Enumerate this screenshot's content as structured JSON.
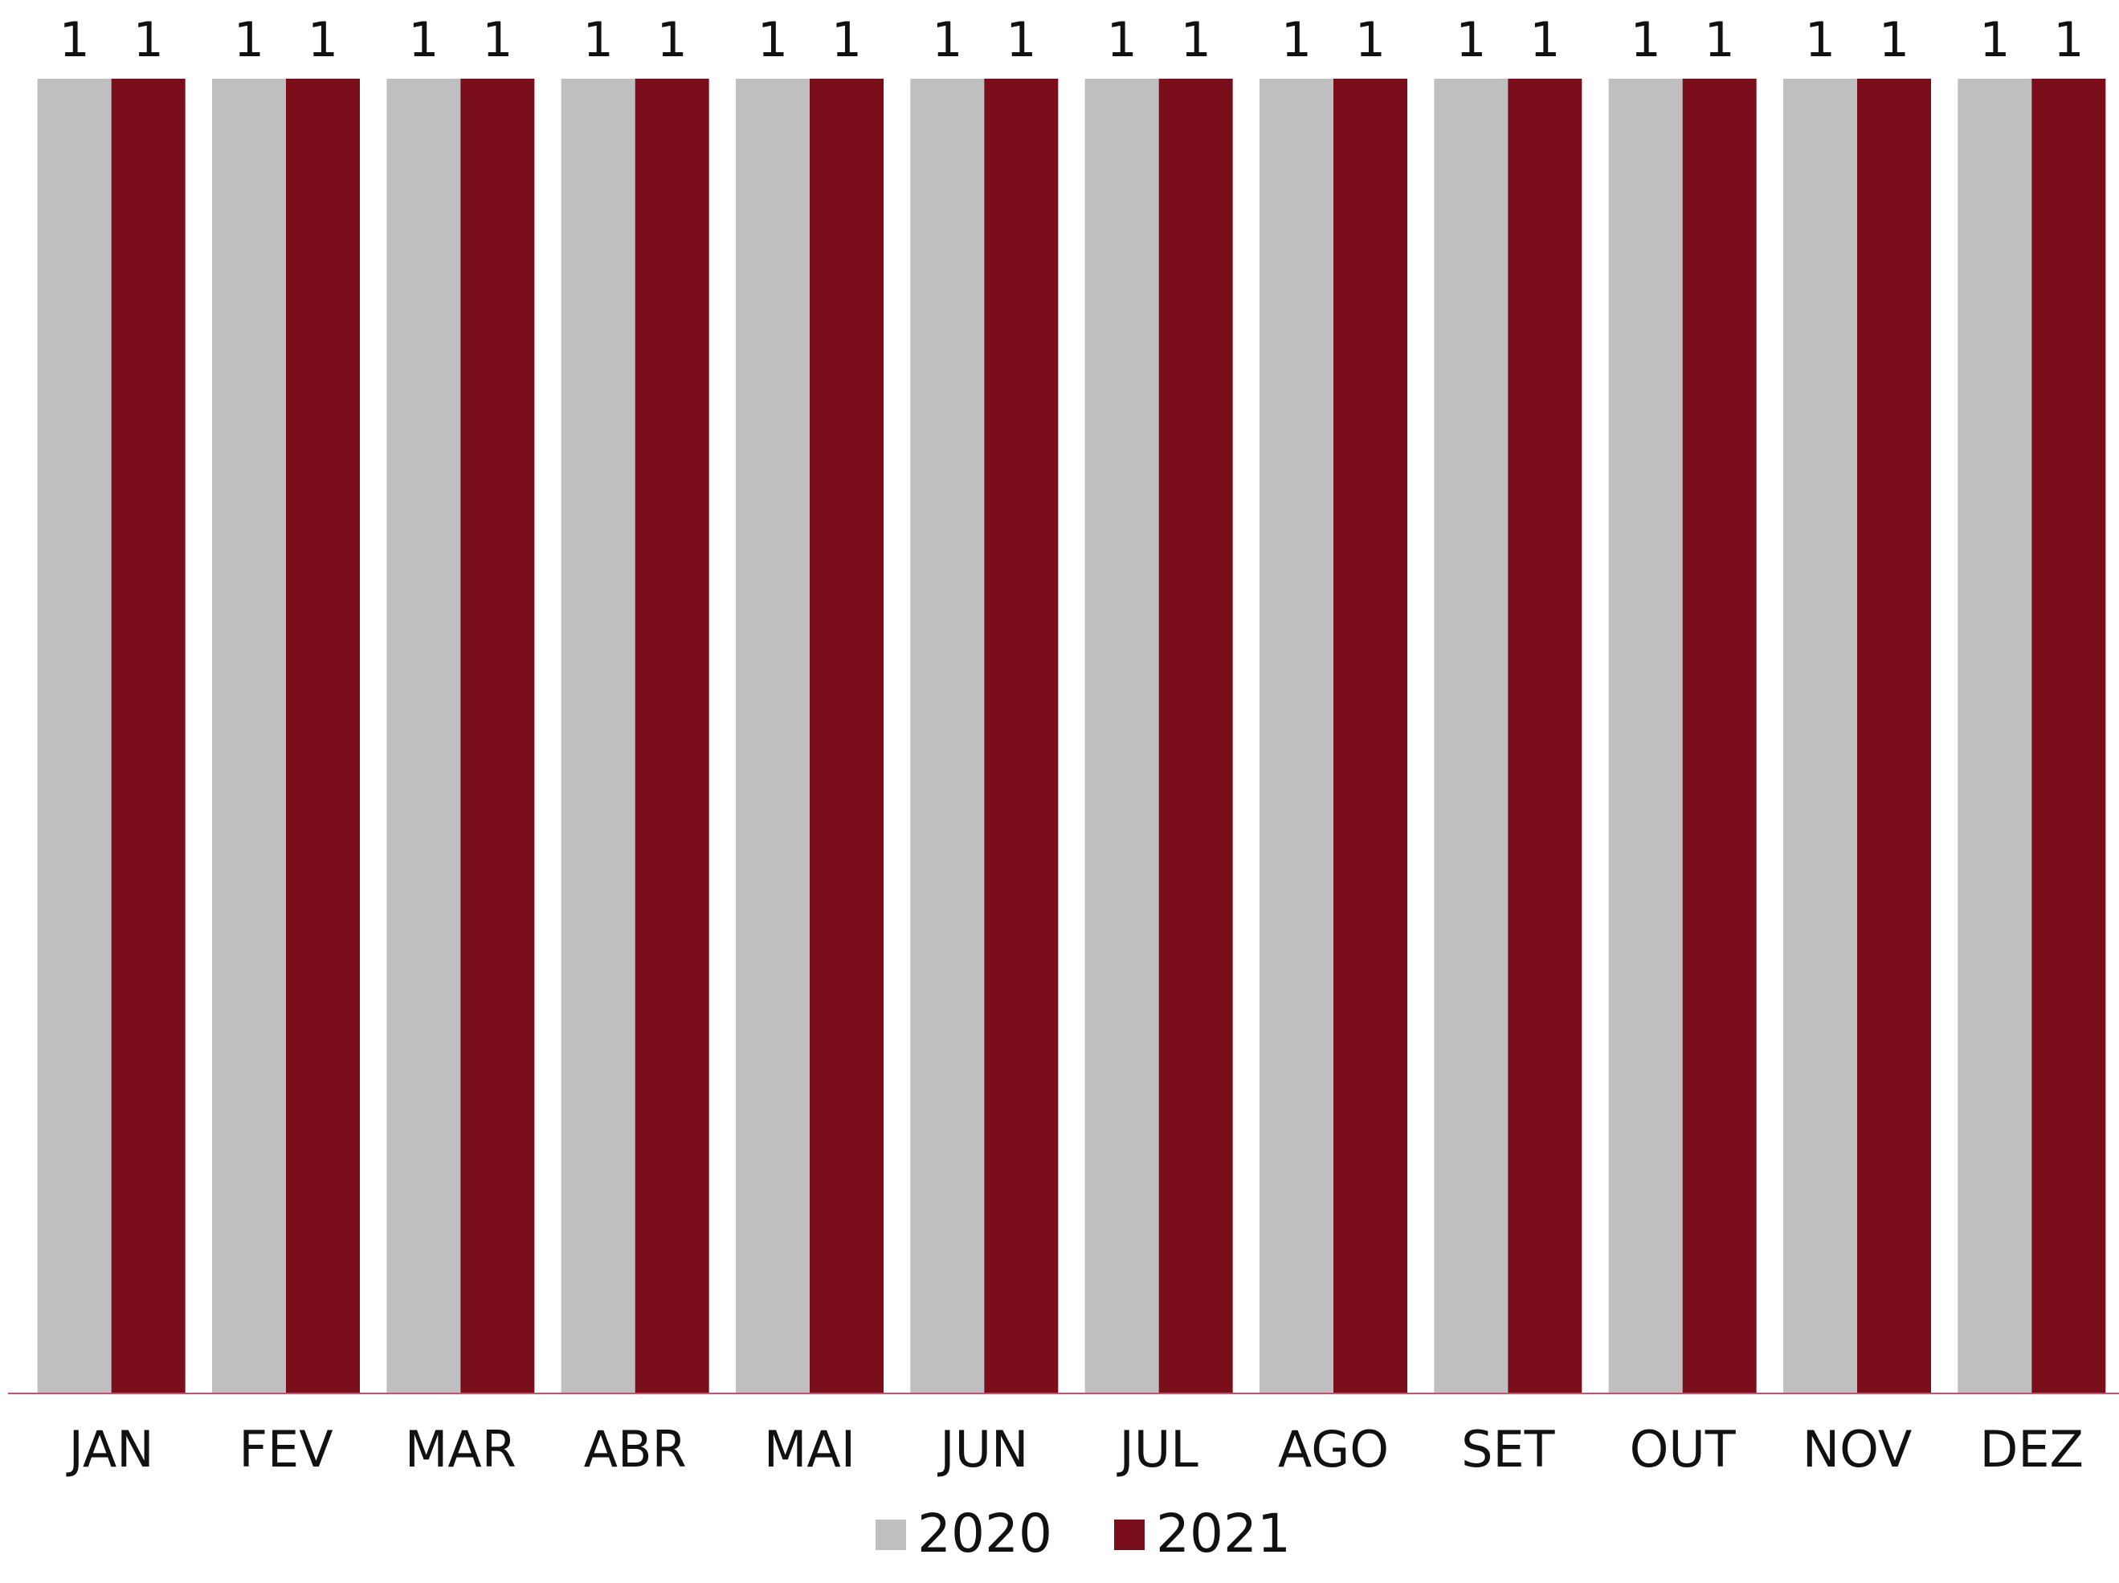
{
  "chart_data": {
    "type": "bar",
    "categories": [
      "JAN",
      "FEV",
      "MAR",
      "ABR",
      "MAI",
      "JUN",
      "JUL",
      "AGO",
      "SET",
      "OUT",
      "NOV",
      "DEZ"
    ],
    "series": [
      {
        "name": "2020",
        "values": [
          1,
          1,
          1,
          1,
          1,
          1,
          1,
          1,
          1,
          1,
          1,
          1
        ],
        "color": "#bfbfbf"
      },
      {
        "name": "2021",
        "values": [
          1,
          1,
          1,
          1,
          1,
          1,
          1,
          1,
          1,
          1,
          1,
          1
        ],
        "color": "#7b0e1b"
      }
    ],
    "data_labels": true,
    "title": "",
    "xlabel": "",
    "ylabel": "",
    "ylim": [
      0,
      1
    ],
    "grid": false,
    "legend_position": "bottom",
    "axis_line_color": "#c8506e"
  }
}
